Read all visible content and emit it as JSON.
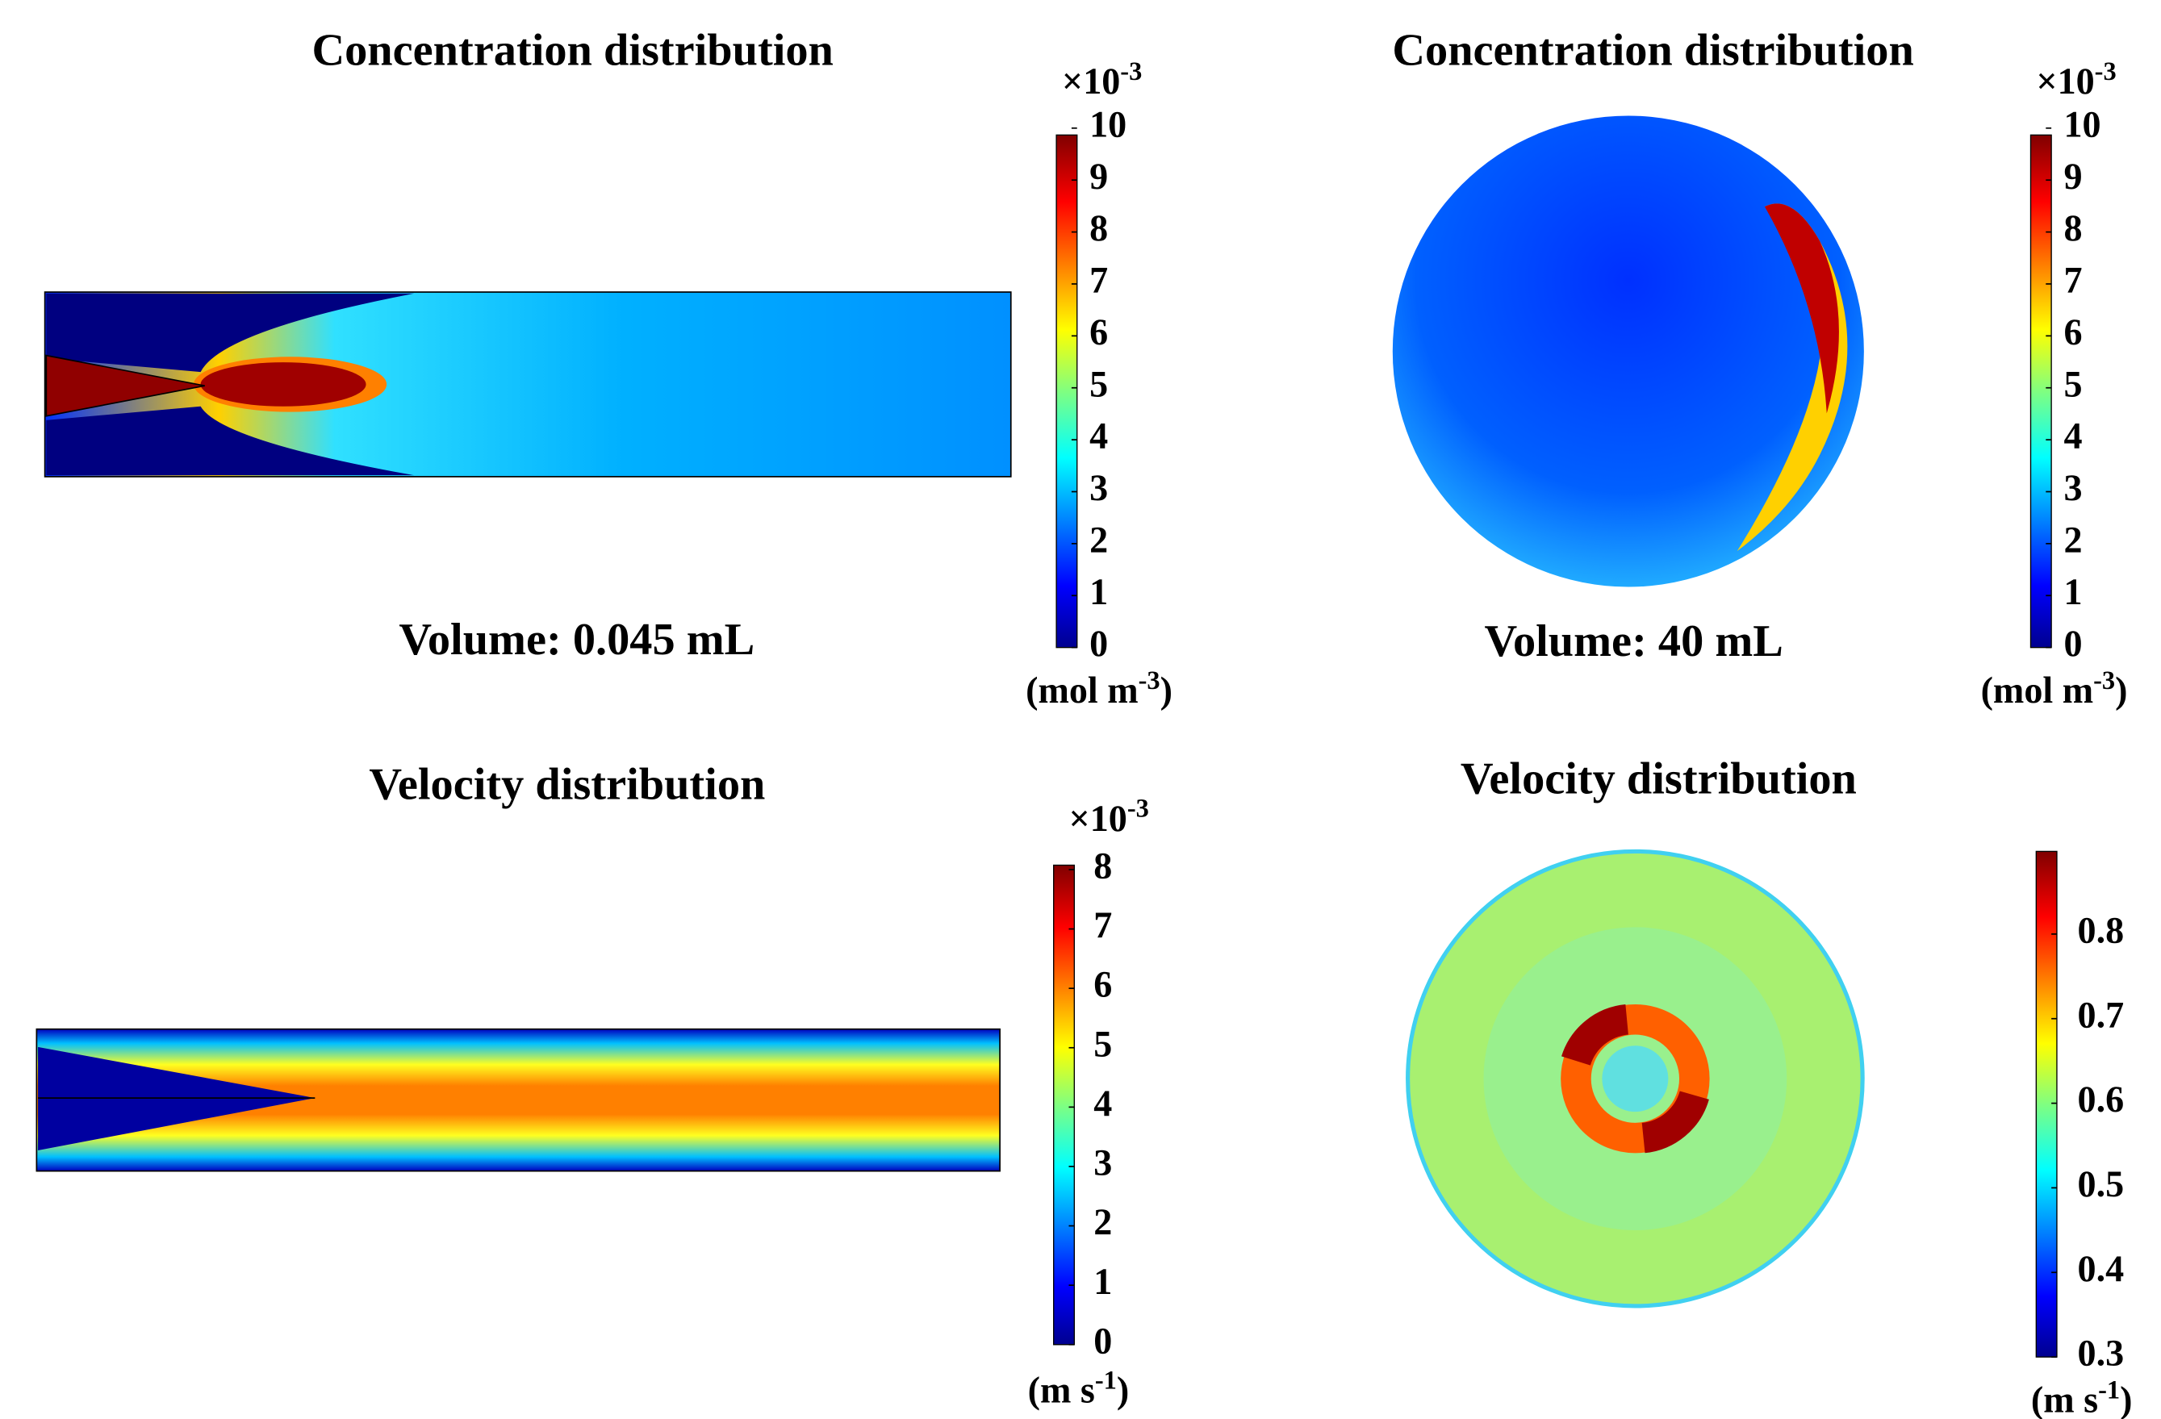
{
  "panels": [
    {
      "title": "Concentration distribution",
      "volume": "Volume: 0.045 mL",
      "colorbar": {
        "multiplier": "×10",
        "exponent": "-3",
        "ticks": [
          0,
          1,
          2,
          3,
          4,
          5,
          6,
          7,
          8,
          9,
          10
        ],
        "unit": {
          "open": "(mol m",
          "sup": "-3",
          "close": ")"
        }
      }
    },
    {
      "title": "Concentration distribution",
      "volume": "Volume: 40 mL",
      "colorbar": {
        "multiplier": "×10",
        "exponent": "-3",
        "ticks": [
          0,
          1,
          2,
          3,
          4,
          5,
          6,
          7,
          8,
          9,
          10
        ],
        "unit": {
          "open": "(mol m",
          "sup": "-3",
          "close": ")"
        }
      }
    },
    {
      "title": "Velocity distribution",
      "colorbar": {
        "multiplier": "×10",
        "exponent": "-3",
        "ticks": [
          0,
          1,
          2,
          3,
          4,
          5,
          6,
          7,
          8
        ],
        "unit": {
          "open": "(m s",
          "sup": "-1",
          "close": ")"
        }
      }
    },
    {
      "title": "Velocity distribution",
      "colorbar": {
        "ticks": [
          0.3,
          0.4,
          0.5,
          0.6,
          0.7,
          0.8
        ],
        "unit": {
          "open": "(m s",
          "sup": "-1",
          "close": ")"
        }
      }
    }
  ]
}
